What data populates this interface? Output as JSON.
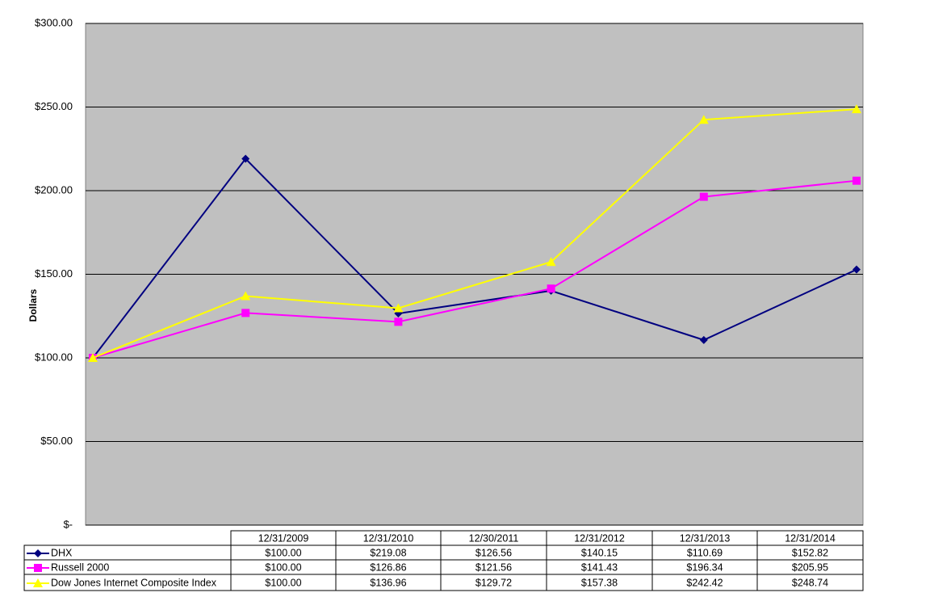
{
  "chart_data": {
    "type": "line",
    "y_label": "Dollars",
    "categories": [
      "12/31/2009",
      "12/31/2010",
      "12/30/2011",
      "12/31/2012",
      "12/31/2013",
      "12/31/2014"
    ],
    "series": [
      {
        "name": "DHX",
        "color": "#000080",
        "marker": "diamond",
        "values": [
          100.0,
          219.08,
          126.56,
          140.15,
          110.69,
          152.82
        ],
        "value_labels": [
          "$100.00",
          "$219.08",
          "$126.56",
          "$140.15",
          "$110.69",
          "$152.82"
        ]
      },
      {
        "name": "Russell 2000",
        "color": "#ff00ff",
        "marker": "square",
        "values": [
          100.0,
          126.86,
          121.56,
          141.43,
          196.34,
          205.95
        ],
        "value_labels": [
          "$100.00",
          "$126.86",
          "$121.56",
          "$141.43",
          "$196.34",
          "$205.95"
        ]
      },
      {
        "name": "Dow Jones Internet Composite Index",
        "color": "#ffff00",
        "marker": "triangle",
        "values": [
          100.0,
          136.96,
          129.72,
          157.38,
          242.42,
          248.74
        ],
        "value_labels": [
          "$100.00",
          "$136.96",
          "$129.72",
          "$157.38",
          "$242.42",
          "$248.74"
        ]
      }
    ],
    "ylim": [
      0,
      300
    ],
    "yticks": [
      {
        "value": 0,
        "label": "$-"
      },
      {
        "value": 50,
        "label": "$50.00"
      },
      {
        "value": 100,
        "label": "$100.00"
      },
      {
        "value": 150,
        "label": "$150.00"
      },
      {
        "value": 200,
        "label": "$200.00"
      },
      {
        "value": 250,
        "label": "$250.00"
      },
      {
        "value": 300,
        "label": "$300.00"
      }
    ],
    "grid": true,
    "plot_background": "#c0c0c0"
  }
}
